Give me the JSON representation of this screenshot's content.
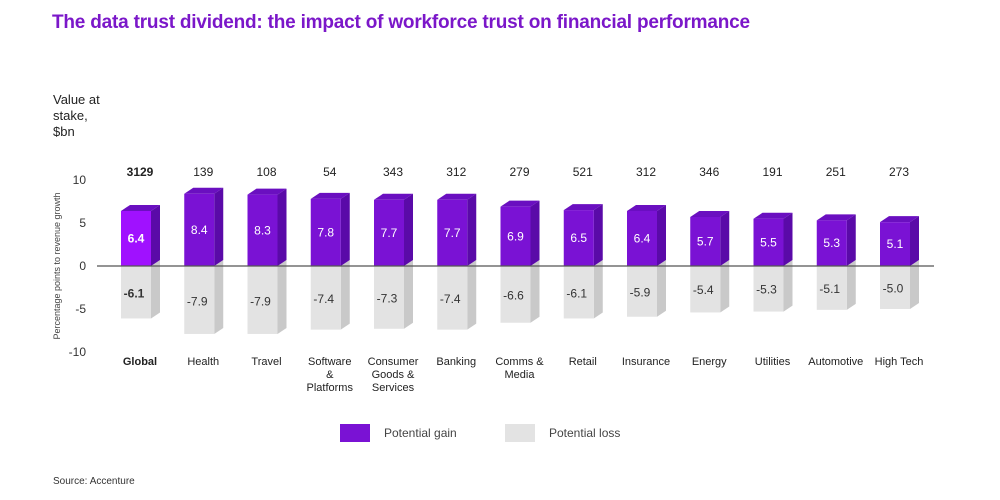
{
  "title": "The data trust dividend: the impact of workforce trust on financial performance",
  "value_label_lines": [
    "Value at",
    "stake,",
    "$bn"
  ],
  "source": "Source: Accenture",
  "colors": {
    "gain_front": "#7a12d4",
    "gain_front_highlight": "#a011ff",
    "gain_top": "#6a0fc0",
    "gain_side": "#5a0aa8",
    "loss_front": "#e3e3e3",
    "loss_side": "#c9c9c9",
    "title": "#7b17c9"
  },
  "chart_data": {
    "type": "bar",
    "stacked_diverging": true,
    "categories": [
      "Global",
      "Health",
      "Travel",
      "Software & Platforms",
      "Consumer Goods & Services",
      "Banking",
      "Comms & Media",
      "Retail",
      "Insurance",
      "Energy",
      "Utilities",
      "Automotive",
      "High Tech"
    ],
    "category_lines": [
      [
        "Global"
      ],
      [
        "Health"
      ],
      [
        "Travel"
      ],
      [
        "Software",
        "&",
        "Platforms"
      ],
      [
        "Consumer",
        "Goods &",
        "Services"
      ],
      [
        "Banking"
      ],
      [
        "Comms &",
        "Media"
      ],
      [
        "Retail"
      ],
      [
        "Insurance"
      ],
      [
        "Energy"
      ],
      [
        "Utilities"
      ],
      [
        "Automotive"
      ],
      [
        "High Tech"
      ]
    ],
    "value_at_stake_bn": [
      3129,
      139,
      108,
      54,
      343,
      312,
      279,
      521,
      312,
      346,
      191,
      251,
      273
    ],
    "series": [
      {
        "name": "Potential gain",
        "values": [
          6.4,
          8.4,
          8.3,
          7.8,
          7.7,
          7.7,
          6.9,
          6.5,
          6.4,
          5.7,
          5.5,
          5.3,
          5.1
        ]
      },
      {
        "name": "Potential loss",
        "values": [
          -6.1,
          -7.9,
          -7.9,
          -7.4,
          -7.3,
          -7.4,
          -6.6,
          -6.1,
          -5.9,
          -5.4,
          -5.3,
          -5.1,
          -5.0
        ]
      }
    ],
    "ylabel": "Percentage points to revenue growth",
    "ylim": [
      -10,
      10
    ],
    "yticks": [
      10,
      5,
      0,
      -5,
      -10
    ],
    "highlight_index": 0,
    "legend_position": "bottom-center"
  }
}
